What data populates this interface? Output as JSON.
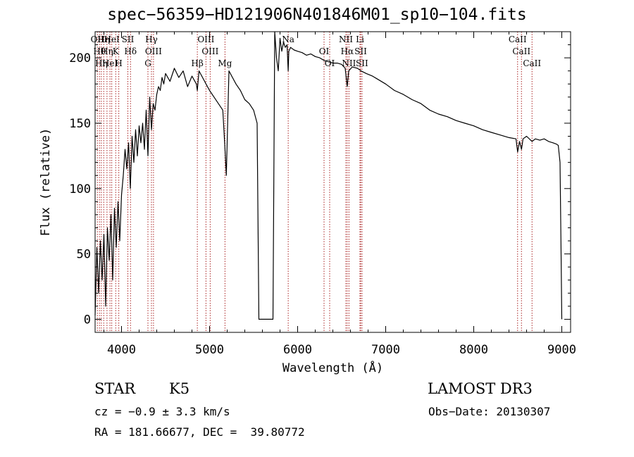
{
  "title": "spec−56359−HD121906N401846M01_sp10−104.fits",
  "footer": {
    "type_label": "STAR",
    "subclass": "K5",
    "cz": "cz = −0.9 ± 3.3 km/s",
    "radec": "RA = 181.66677, DEC =  39.80772",
    "survey": "LAMOST DR3",
    "obs_date": "Obs−Date: 20130307"
  },
  "chart_data": {
    "type": "line",
    "title": "spec−56359−HD121906N401846M01_sp10−104.fits",
    "xlabel": "Wavelength (Å)",
    "ylabel": "Flux (relative)",
    "xlim": [
      3700,
      9100
    ],
    "ylim": [
      -10,
      220
    ],
    "xticks": [
      4000,
      5000,
      6000,
      7000,
      8000,
      9000
    ],
    "yticks": [
      0,
      50,
      100,
      150,
      200
    ],
    "line_color": "#000000",
    "marker_color": "#aa2222",
    "series": [
      {
        "x": [
          3700,
          3720,
          3740,
          3760,
          3780,
          3800,
          3820,
          3840,
          3860,
          3880,
          3900,
          3920,
          3940,
          3960,
          3980,
          4000,
          4020,
          4040,
          4060,
          4080,
          4100,
          4120,
          4140,
          4160,
          4180,
          4200,
          4220,
          4240,
          4260,
          4280,
          4300,
          4320,
          4340,
          4360,
          4380,
          4400,
          4420,
          4440,
          4460,
          4480,
          4500,
          4550,
          4600,
          4650,
          4700,
          4750,
          4800,
          4850,
          4861,
          4880,
          4920,
          4960,
          5000,
          5050,
          5100,
          5150,
          5175,
          5190,
          5220,
          5260,
          5300,
          5350,
          5400,
          5450,
          5500,
          5540,
          5560,
          5580,
          5700,
          5720,
          5740,
          5760,
          5780,
          5800,
          5820,
          5840,
          5860,
          5880,
          5893,
          5900,
          5920,
          5960,
          6000,
          6050,
          6100,
          6150,
          6200,
          6250,
          6300,
          6350,
          6400,
          6450,
          6500,
          6540,
          6563,
          6580,
          6620,
          6680,
          6720,
          6780,
          6850,
          6900,
          7000,
          7100,
          7200,
          7300,
          7400,
          7500,
          7600,
          7700,
          7800,
          7900,
          8000,
          8100,
          8200,
          8300,
          8400,
          8480,
          8498,
          8520,
          8542,
          8560,
          8600,
          8662,
          8700,
          8750,
          8800,
          8850,
          8900,
          8940,
          8960,
          8980,
          8990,
          9000
        ],
        "y": [
          3,
          55,
          20,
          60,
          30,
          65,
          10,
          70,
          45,
          80,
          30,
          85,
          55,
          90,
          60,
          95,
          110,
          130,
          115,
          135,
          100,
          140,
          120,
          145,
          125,
          148,
          135,
          150,
          130,
          160,
          125,
          170,
          145,
          165,
          160,
          172,
          178,
          175,
          185,
          180,
          188,
          182,
          192,
          185,
          190,
          178,
          186,
          180,
          175,
          190,
          185,
          180,
          175,
          170,
          165,
          160,
          130,
          110,
          190,
          185,
          180,
          175,
          168,
          165,
          160,
          150,
          0,
          0,
          0,
          0,
          220,
          200,
          190,
          215,
          205,
          212,
          208,
          210,
          190,
          205,
          208,
          206,
          205,
          204,
          202,
          203,
          201,
          200,
          198,
          197,
          196,
          196,
          195,
          192,
          178,
          190,
          193,
          192,
          190,
          188,
          186,
          184,
          180,
          175,
          172,
          168,
          165,
          160,
          157,
          155,
          152,
          150,
          148,
          145,
          143,
          141,
          139,
          138,
          128,
          136,
          130,
          138,
          140,
          136,
          138,
          137,
          138,
          136,
          135,
          134,
          133,
          120,
          60,
          0
        ]
      }
    ],
    "line_markers": [
      {
        "x": 3726,
        "label": "OII"
      },
      {
        "x": 3750,
        "label": "Hθ"
      },
      {
        "x": 3771,
        "label": "Hη"
      },
      {
        "x": 3798,
        "label": "Hη"
      },
      {
        "x": 3835,
        "label": "Hη"
      },
      {
        "x": 3869,
        "label": "HeI"
      },
      {
        "x": 3889,
        "label": "HeI"
      },
      {
        "x": 3934,
        "label": "K"
      },
      {
        "x": 3969,
        "label": "H"
      },
      {
        "x": 4072,
        "label": "SII"
      },
      {
        "x": 4102,
        "label": "Hδ"
      },
      {
        "x": 4300,
        "label": "G"
      },
      {
        "x": 4340,
        "label": "Hγ"
      },
      {
        "x": 4363,
        "label": "OIII"
      },
      {
        "x": 4861,
        "label": "Hβ"
      },
      {
        "x": 4959,
        "label": "OIII"
      },
      {
        "x": 5007,
        "label": "OIII"
      },
      {
        "x": 5175,
        "label": "Mg"
      },
      {
        "x": 5893,
        "label": "Na"
      },
      {
        "x": 6300,
        "label": "OI"
      },
      {
        "x": 6364,
        "label": "OI"
      },
      {
        "x": 6548,
        "label": "NII"
      },
      {
        "x": 6563,
        "label": "Hα"
      },
      {
        "x": 6583,
        "label": "NII"
      },
      {
        "x": 6708,
        "label": "Li"
      },
      {
        "x": 6716,
        "label": "SII"
      },
      {
        "x": 6731,
        "label": "SII"
      },
      {
        "x": 8498,
        "label": "CaII"
      },
      {
        "x": 8542,
        "label": "CaII"
      },
      {
        "x": 8662,
        "label": "CaII"
      }
    ]
  }
}
